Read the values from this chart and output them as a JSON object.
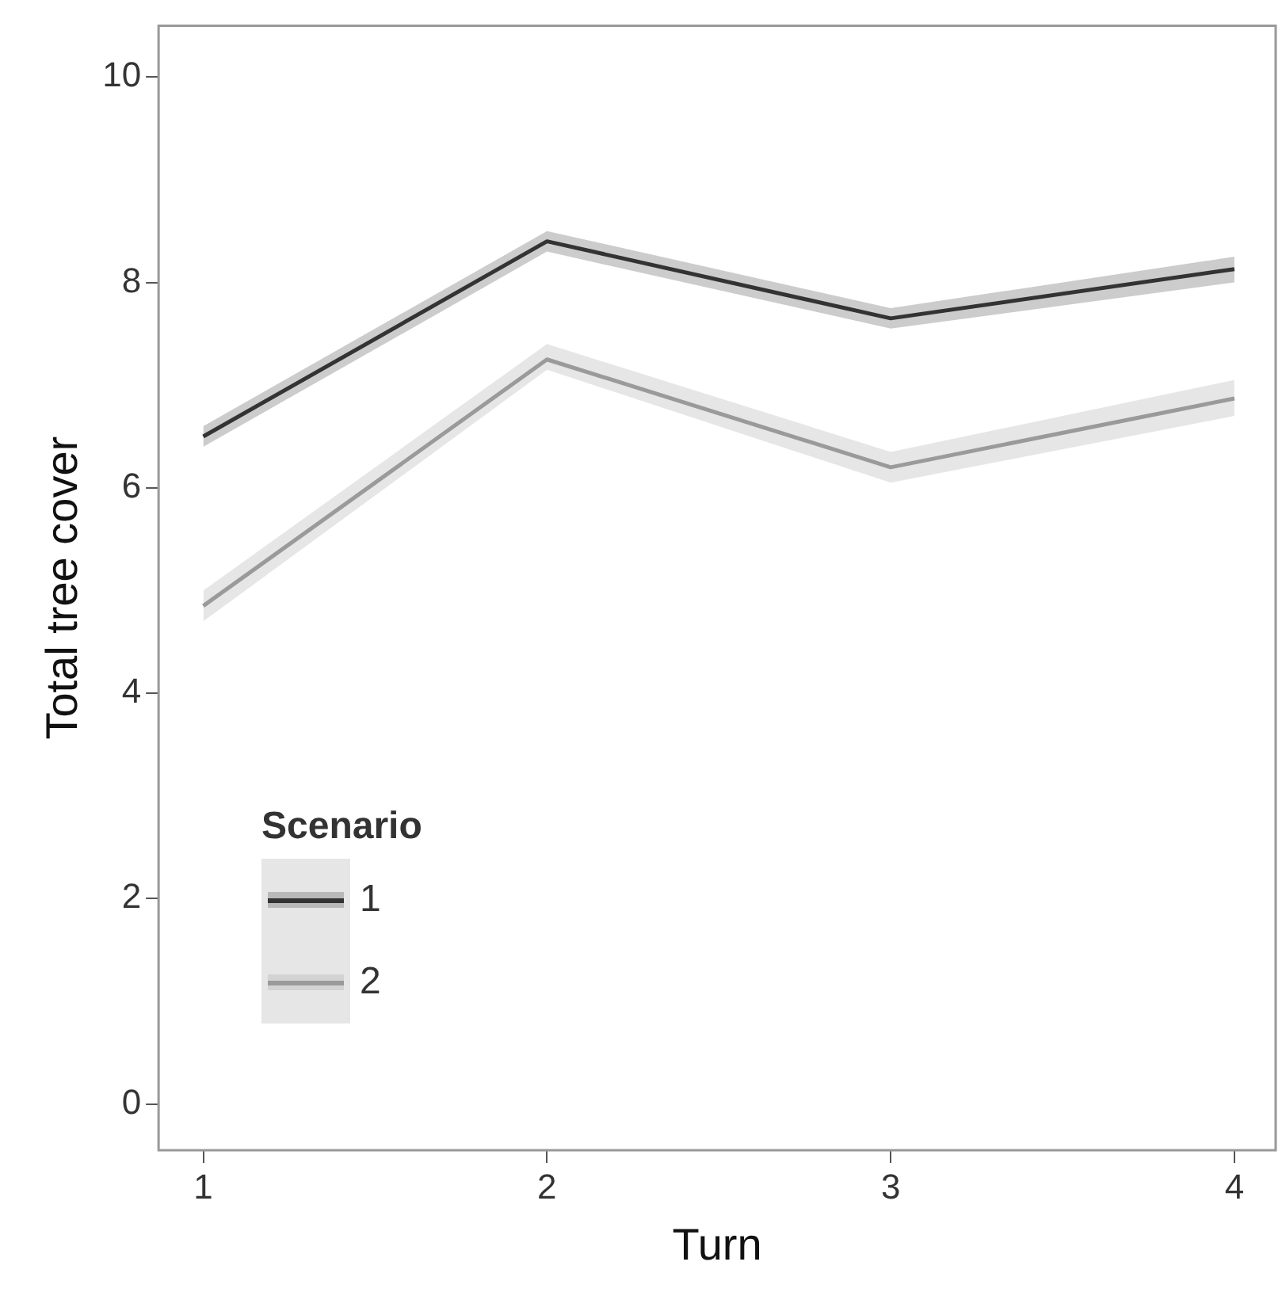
{
  "chart_data": {
    "type": "line",
    "xlabel": "Turn",
    "ylabel": "Total tree cover",
    "legend_title": "Scenario",
    "x": [
      1,
      2,
      3,
      4
    ],
    "xlim": [
      0.87,
      4.12
    ],
    "xticks": [
      1,
      2,
      3,
      4
    ],
    "ylim": [
      -0.45,
      10.5
    ],
    "yticks": [
      0,
      2,
      4,
      6,
      8,
      10
    ],
    "series": [
      {
        "name": "1",
        "color": "#333333",
        "values": [
          6.5,
          8.4,
          7.65,
          8.13
        ],
        "lower": [
          6.4,
          8.3,
          7.55,
          8.0
        ],
        "upper": [
          6.6,
          8.5,
          7.75,
          8.25
        ]
      },
      {
        "name": "2",
        "color": "#9a9a9a",
        "values": [
          4.85,
          7.25,
          6.2,
          6.87
        ],
        "lower": [
          4.7,
          7.15,
          6.05,
          6.7
        ],
        "upper": [
          5.0,
          7.4,
          6.35,
          7.05
        ]
      }
    ],
    "grid": false,
    "legend": "bottom left",
    "marker": "none",
    "line_style": "solid"
  }
}
